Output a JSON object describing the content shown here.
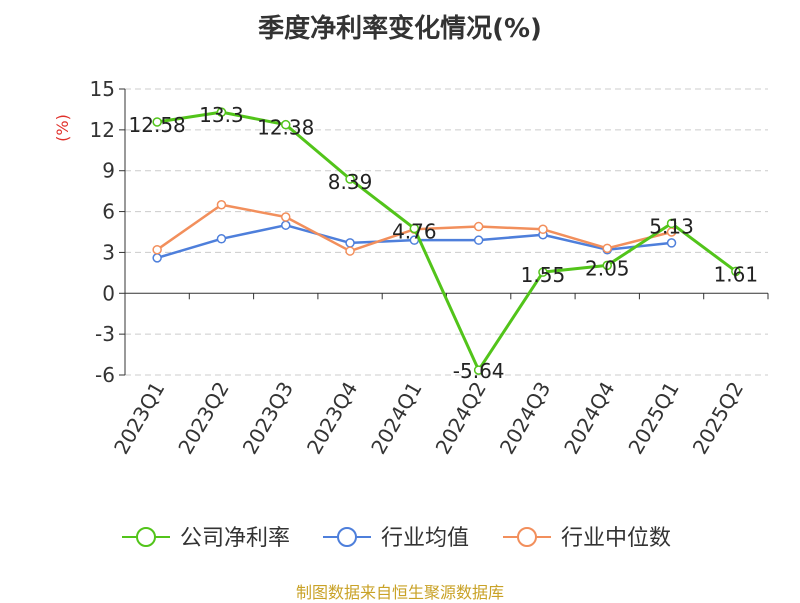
{
  "chart_data": {
    "type": "line",
    "title": "季度净利率变化情况(%)",
    "ylabel": "(%)",
    "xlabel": "",
    "categories": [
      "2023Q1",
      "2023Q2",
      "2023Q3",
      "2023Q4",
      "2024Q1",
      "2024Q2",
      "2024Q3",
      "2024Q4",
      "2025Q1",
      "2025Q2"
    ],
    "ylim": [
      -6,
      15
    ],
    "yticks": [
      -6,
      -3,
      0,
      3,
      6,
      9,
      12,
      15
    ],
    "ytick_labels": [
      "-6",
      "-3",
      "0",
      "3",
      "6",
      "9",
      "12",
      "15"
    ],
    "grid": true,
    "legend_position": "bottom",
    "series": [
      {
        "name": "公司净利率",
        "color": "#52c41a",
        "values": [
          12.58,
          13.3,
          12.38,
          8.39,
          4.76,
          -5.64,
          1.55,
          2.05,
          5.13,
          1.61
        ],
        "labels": [
          "12.58",
          "13.3",
          "12.38",
          "8.39",
          "4.76",
          "-5.64",
          "1.55",
          "2.05",
          "5.13",
          "1.61"
        ]
      },
      {
        "name": "行业均值",
        "color": "#4e7fdb",
        "values": [
          2.6,
          4.0,
          5.0,
          3.7,
          3.9,
          3.9,
          4.3,
          3.2,
          3.7,
          null
        ]
      },
      {
        "name": "行业中位数",
        "color": "#f28f5c",
        "values": [
          3.2,
          6.5,
          5.6,
          3.1,
          4.7,
          4.9,
          4.7,
          3.3,
          4.5,
          null
        ]
      }
    ]
  },
  "source": "制图数据来自恒生聚源数据库"
}
